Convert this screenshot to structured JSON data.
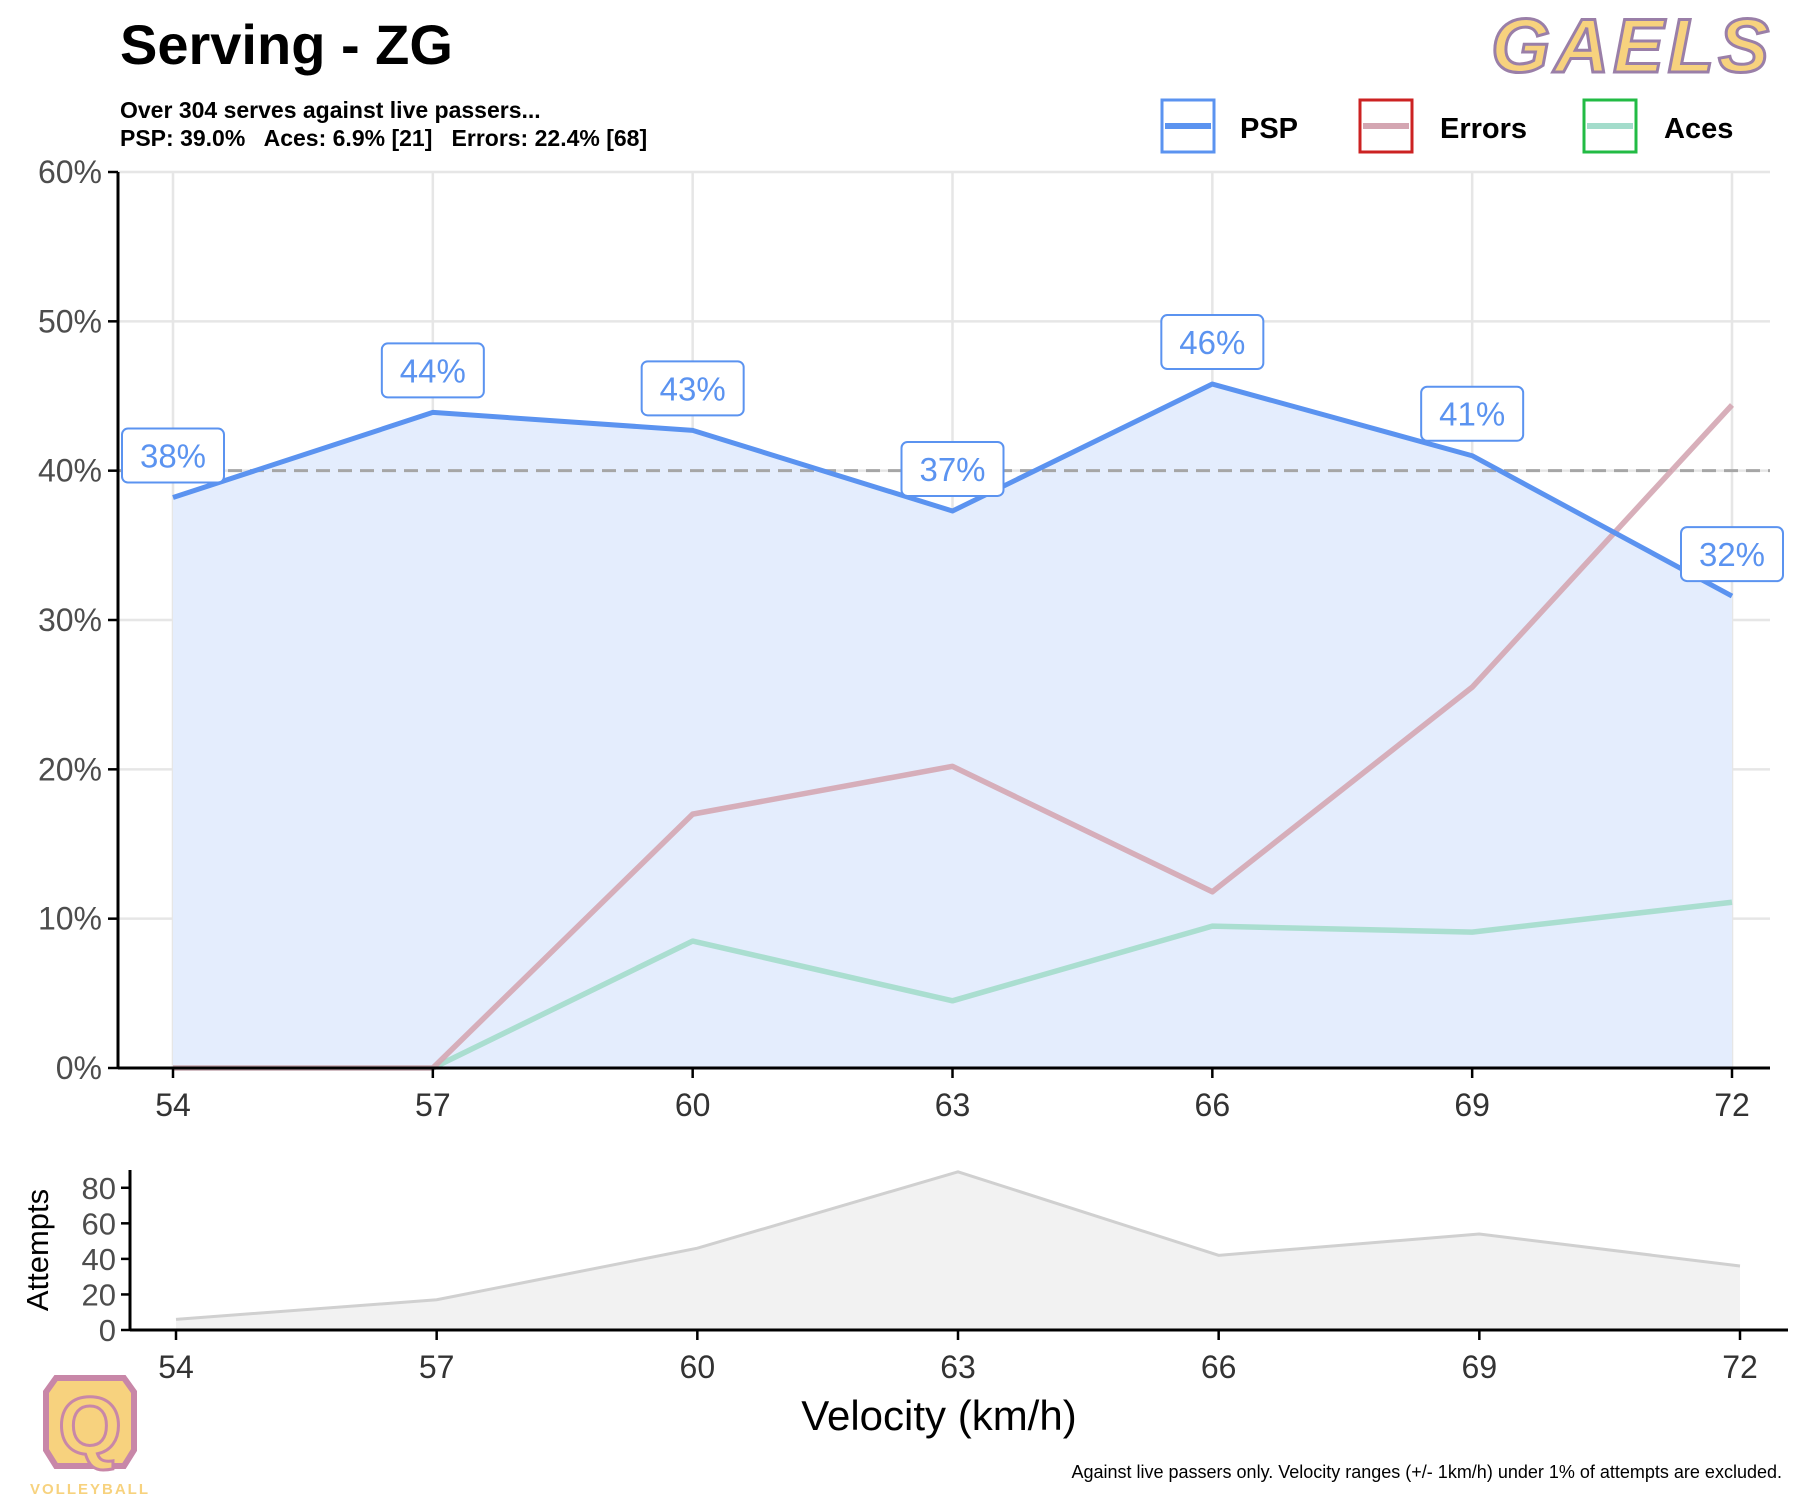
{
  "header": {
    "title": "Serving - ZG",
    "subtitle_line1": "Over 304 serves against live passers...",
    "subtitle_line2": "PSP: 39.0%   Aces: 6.9% [21]   Errors: 22.4% [68]"
  },
  "footer": {
    "note": "Against live passers only. Velocity ranges (+/- 1km/h) under 1% of attempts are excluded."
  },
  "branding": {
    "top_logo_text": "GAELS",
    "bottom_logo_letter": "Q",
    "bottom_logo_text": "VOLLEYBALL",
    "colors": {
      "gold": "#f7d27e",
      "pink": "#c887a8",
      "purple": "#9a7fa8"
    }
  },
  "chart_data": [
    {
      "type": "line",
      "x": [
        54,
        57,
        60,
        63,
        66,
        69,
        72
      ],
      "ylim": [
        0,
        60
      ],
      "y_ticks": [
        "0%",
        "10%",
        "20%",
        "30%",
        "40%",
        "50%",
        "60%"
      ],
      "x_ticks": [
        "54",
        "57",
        "60",
        "63",
        "66",
        "69",
        "72"
      ],
      "reference_line": 40,
      "grid": true,
      "legend_position": "top-right",
      "series": [
        {
          "name": "PSP",
          "values": [
            38.2,
            43.9,
            42.7,
            37.3,
            45.8,
            41.0,
            31.6
          ],
          "labels": [
            "38%",
            "44%",
            "43%",
            "37%",
            "46%",
            "41%",
            "32%"
          ],
          "color": "#5b93f0",
          "fill": "#e4edfd"
        },
        {
          "name": "Errors",
          "values": [
            0,
            0,
            17.0,
            20.2,
            11.8,
            25.5,
            44.4
          ],
          "color": "#d4a6b2",
          "legend_color": "#cc2222"
        },
        {
          "name": "Aces",
          "values": [
            0,
            0,
            8.5,
            4.5,
            9.5,
            9.1,
            11.1
          ],
          "color": "#a3dccb",
          "legend_color": "#22bb44"
        }
      ]
    },
    {
      "type": "area",
      "x": [
        54,
        57,
        60,
        63,
        66,
        69,
        72
      ],
      "values": [
        6,
        17,
        46,
        89,
        42,
        54,
        36
      ],
      "ylabel": "Attempts",
      "xlabel": "Velocity (km/h)",
      "ylim": [
        0,
        90
      ],
      "y_ticks": [
        "0",
        "20",
        "40",
        "60",
        "80"
      ],
      "x_ticks": [
        "54",
        "57",
        "60",
        "63",
        "66",
        "69",
        "72"
      ]
    }
  ]
}
